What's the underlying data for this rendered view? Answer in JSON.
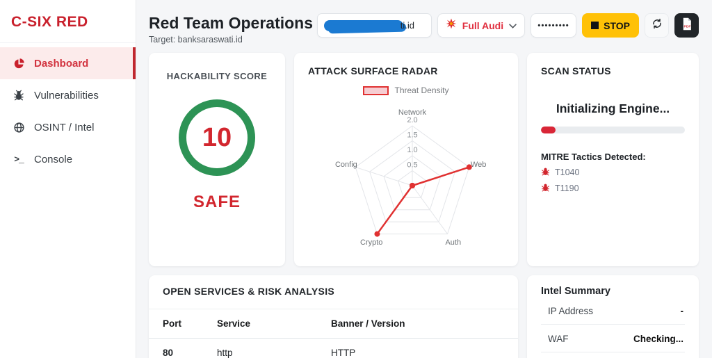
{
  "brand": {
    "logo": "C-SIX RED"
  },
  "sidebar": {
    "items": [
      {
        "label": "Dashboard",
        "icon": "pie-chart-icon",
        "active": true
      },
      {
        "label": "Vulnerabilities",
        "icon": "bug-icon",
        "active": false
      },
      {
        "label": "OSINT / Intel",
        "icon": "globe-icon",
        "active": false
      },
      {
        "label": "Console",
        "icon": "terminal-icon",
        "active": false
      }
    ]
  },
  "header": {
    "title": "Red Team Operations",
    "subtitle": "Target: banksaraswati.id",
    "target_input": {
      "visible_suffix": "ti.id",
      "redacted": true
    },
    "mode_select": {
      "label": "Full Audi",
      "icon": "burst-icon"
    },
    "api_key_value": "•••••••••",
    "stop_button": "STOP"
  },
  "cards": {
    "hackability": {
      "title": "HACKABILITY SCORE",
      "score": "10",
      "verdict": "SAFE"
    },
    "radar": {
      "title": "ATTACK SURFACE RADAR"
    },
    "scan_status": {
      "title": "SCAN STATUS",
      "status_text": "Initializing Engine...",
      "progress_pct": 10,
      "mitre_label": "MITRE Tactics Detected:",
      "tactics": [
        "T1040",
        "T1190"
      ]
    },
    "services": {
      "title": "OPEN SERVICES & RISK ANALYSIS",
      "columns": [
        "Port",
        "Service",
        "Banner / Version"
      ],
      "rows": [
        [
          "80",
          "http",
          "HTTP"
        ]
      ]
    },
    "intel": {
      "title": "Intel Summary",
      "rows": [
        {
          "label": "IP Address",
          "value": "-"
        },
        {
          "label": "WAF",
          "value": "Checking..."
        }
      ]
    }
  },
  "chart_data": {
    "type": "radar",
    "title": "ATTACK SURFACE RADAR",
    "categories": [
      "Network",
      "Web",
      "Auth",
      "Crypto",
      "Config"
    ],
    "series": [
      {
        "name": "Threat Density",
        "values": [
          0,
          2,
          0,
          2,
          0
        ]
      }
    ],
    "ticks": [
      0.5,
      1.0,
      1.5,
      2.0
    ],
    "rlim": [
      0,
      2
    ],
    "grid": true,
    "legend_position": "top",
    "line_color": "#e03131",
    "fill_color": "rgba(224,49,49,0.18)"
  },
  "colors": {
    "logo_red": "#c9202c",
    "accent_red": "#d2262e",
    "safe_green": "#2d9355",
    "stop_yellow": "#ffc107",
    "progress_red": "#d92637",
    "dark_button": "#212529",
    "scribble_blue": "#1b7ad2"
  }
}
